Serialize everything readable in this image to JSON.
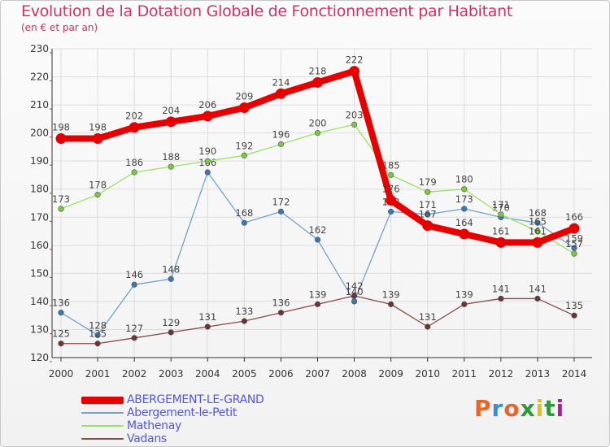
{
  "title": "Evolution de la Dotation Globale de Fonctionnement par Habitant",
  "subtitle": "(en € et par an)",
  "logo": {
    "text": "Proxiti",
    "colors": [
      "#e8662a",
      "#3a8fd0",
      "#e8662a",
      "#2f9a3a",
      "#e2c21a",
      "#2f9a3a",
      "#9a2f8a"
    ]
  },
  "colors": {
    "title": "#cc3366",
    "axis": "#333333",
    "grid": "#dddddd",
    "legend_text": "#5555dd",
    "tick_mark": "#cc3366"
  },
  "chart_data": {
    "type": "line",
    "title": "Evolution de la Dotation Globale de Fonctionnement par Habitant",
    "subtitle": "(en € et par an)",
    "xlabel": "",
    "ylabel": "",
    "x": [
      "2000",
      "2001",
      "2002",
      "2003",
      "2004",
      "2005",
      "2006",
      "2007",
      "2008",
      "2009",
      "2010",
      "2011",
      "2012",
      "2013",
      "2014"
    ],
    "ylim": [
      120,
      230
    ],
    "yticks": [
      120,
      130,
      140,
      150,
      160,
      170,
      180,
      190,
      200,
      210,
      220,
      230
    ],
    "grid": true,
    "legend_position": "bottom-left",
    "series": [
      {
        "name": "ABERGEMENT-LE-GRAND",
        "color": "#e60000",
        "marker_color": "#e60000",
        "emphasis": "thick",
        "values": [
          198,
          198,
          202,
          204,
          206,
          209,
          214,
          218,
          222,
          176,
          167,
          164,
          161,
          161,
          166
        ]
      },
      {
        "name": "Abergement-le-Petit",
        "color": "#6fa3cf",
        "marker_color": "#3a78b5",
        "emphasis": "thin",
        "values": [
          136,
          128,
          146,
          148,
          186,
          168,
          172,
          162,
          140,
          172,
          171,
          173,
          170,
          168,
          159
        ]
      },
      {
        "name": "Mathenay",
        "color": "#9be06a",
        "marker_color": "#79c93f",
        "emphasis": "thin",
        "values": [
          173,
          178,
          186,
          188,
          190,
          192,
          196,
          200,
          203,
          185,
          179,
          180,
          171,
          165,
          157
        ]
      },
      {
        "name": "Vadans",
        "color": "#8a4a4a",
        "marker_color": "#6e3333",
        "emphasis": "thin",
        "values": [
          125,
          125,
          127,
          129,
          131,
          133,
          136,
          139,
          142,
          139,
          131,
          139,
          141,
          141,
          135
        ]
      }
    ]
  }
}
